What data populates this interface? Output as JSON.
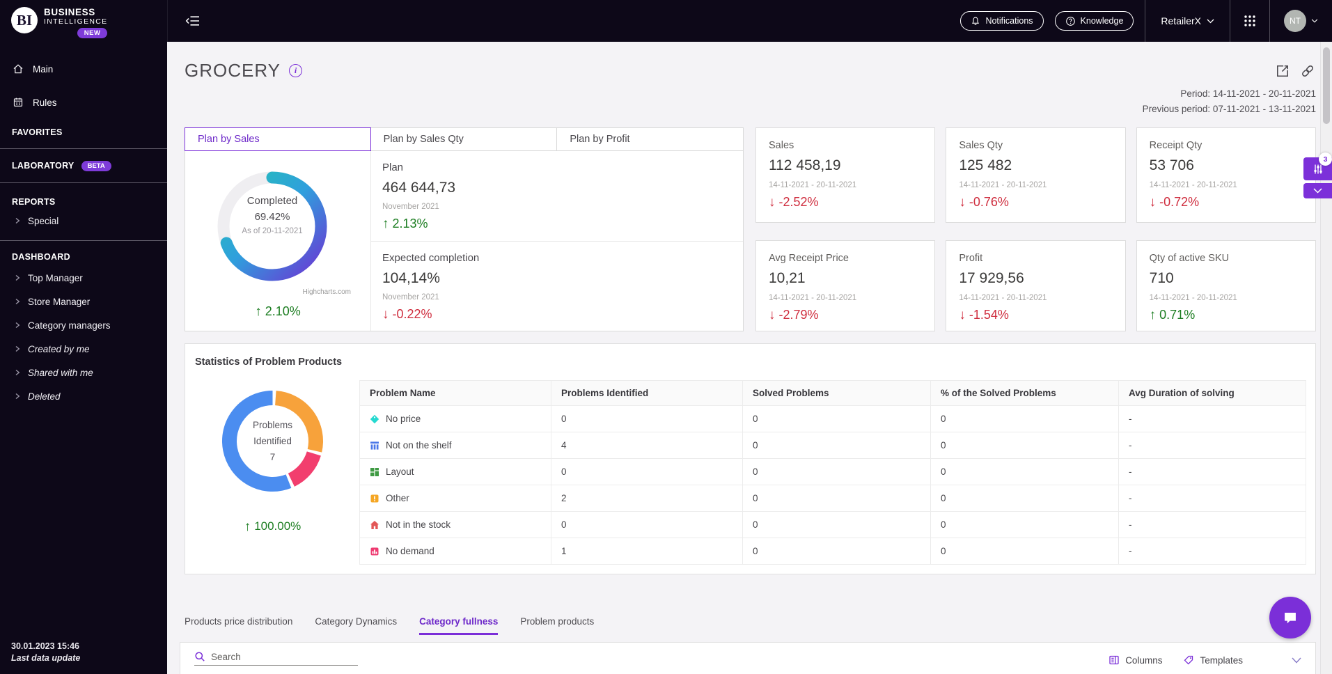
{
  "sidebar": {
    "logo": {
      "initials": "BI",
      "title_line1": "BUSINESS",
      "title_line2": "INTELLIGENCE",
      "badge": "NEW"
    },
    "nav": [
      {
        "label": "Main"
      },
      {
        "label": "Rules"
      }
    ],
    "favorites_header": "FAVORITES",
    "laboratory": {
      "label": "LABORATORY",
      "badge": "BETA"
    },
    "reports_header": "REPORTS",
    "reports_items": [
      {
        "label": "Special"
      }
    ],
    "dashboard_header": "DASHBOARD",
    "dashboard_items": [
      {
        "label": "Top Manager"
      },
      {
        "label": "Store Manager"
      },
      {
        "label": "Category managers"
      },
      {
        "label": "Created by me"
      },
      {
        "label": "Shared with me"
      },
      {
        "label": "Deleted"
      }
    ],
    "footer": {
      "timestamp": "30.01.2023 15:46",
      "label": "Last data update"
    }
  },
  "topbar": {
    "notifications_label": "Notifications",
    "knowledge_label": "Knowledge",
    "tenant": "RetailerX",
    "avatar_initials": "NT"
  },
  "page_header": {
    "title": "GROCERY",
    "period_label": "Period: 14-11-2021 - 20-11-2021",
    "previous_period_label": "Previous period: 07-11-2021 - 13-11-2021"
  },
  "plan_panel": {
    "tabs": [
      {
        "label": "Plan by Sales"
      },
      {
        "label": "Plan by Sales Qty"
      },
      {
        "label": "Plan by Profit"
      }
    ],
    "active_tab": "Plan by Sales",
    "gauge": {
      "percent": 69.42,
      "center_label": "Completed",
      "center_value": "69.42%",
      "as_of": "As of 20-11-2021",
      "credit": "Highcharts.com",
      "delta": {
        "dir": "up",
        "value": "2.10%"
      },
      "track_color": "#efeef1",
      "gradient": [
        "#23c3b4",
        "#2f9fdd",
        "#6c35d3"
      ]
    },
    "plan": {
      "label": "Plan",
      "value": "464 644,73",
      "period": "November 2021",
      "delta": {
        "dir": "up",
        "value": "2.13%"
      }
    },
    "expected": {
      "label": "Expected completion",
      "value": "104,14%",
      "period": "November 2021",
      "delta": {
        "dir": "down",
        "value": "-0.22%"
      }
    }
  },
  "kpi_cards": [
    {
      "label": "Sales",
      "value": "112 458,19",
      "period": "14-11-2021 - 20-11-2021",
      "delta": {
        "dir": "down",
        "value": "-2.52%"
      }
    },
    {
      "label": "Sales Qty",
      "value": "125 482",
      "period": "14-11-2021 - 20-11-2021",
      "delta": {
        "dir": "down",
        "value": "-0.76%"
      }
    },
    {
      "label": "Receipt Qty",
      "value": "53 706",
      "period": "14-11-2021 - 20-11-2021",
      "delta": {
        "dir": "down",
        "value": "-0.72%"
      }
    },
    {
      "label": "Avg Receipt Price",
      "value": "10,21",
      "period": "14-11-2021 - 20-11-2021",
      "delta": {
        "dir": "down",
        "value": "-2.79%"
      }
    },
    {
      "label": "Profit",
      "value": "17 929,56",
      "period": "14-11-2021 - 20-11-2021",
      "delta": {
        "dir": "down",
        "value": "-1.54%"
      }
    },
    {
      "label": "Qty of active SKU",
      "value": "710",
      "period": "14-11-2021 - 20-11-2021",
      "delta": {
        "dir": "up",
        "value": "0.71%"
      }
    }
  ],
  "problem_stats": {
    "title": "Statistics of Problem Products",
    "donut": {
      "center_line1": "Problems",
      "center_line2": "Identified",
      "center_value": "7",
      "delta": {
        "dir": "up",
        "value": "100.00%"
      },
      "segments": [
        {
          "label": "Other",
          "value": 2,
          "color": "#f7a23b"
        },
        {
          "label": "No demand",
          "value": 1,
          "color": "#f23e6e"
        },
        {
          "label": "Not on the shelf",
          "value": 4,
          "color": "#4b8df0"
        }
      ]
    },
    "table": {
      "columns": [
        "Problem Name",
        "Problems Identified",
        "Solved Problems",
        "% of the Solved Problems",
        "Avg Duration of solving"
      ],
      "rows": [
        {
          "name": "No price",
          "icon": "price-tag",
          "color": "#25d9d0",
          "identified": "0",
          "solved": "0",
          "solved_pct": "0",
          "avg_duration": "-"
        },
        {
          "name": "Not on the shelf",
          "icon": "shelf",
          "color": "#4b78e8",
          "identified": "4",
          "solved": "0",
          "solved_pct": "0",
          "avg_duration": "-"
        },
        {
          "name": "Layout",
          "icon": "layout-grid",
          "color": "#3f9a43",
          "identified": "0",
          "solved": "0",
          "solved_pct": "0",
          "avg_duration": "-"
        },
        {
          "name": "Other",
          "icon": "warning",
          "color": "#f5a623",
          "identified": "2",
          "solved": "0",
          "solved_pct": "0",
          "avg_duration": "-"
        },
        {
          "name": "Not in the stock",
          "icon": "house",
          "color": "#e25656",
          "identified": "0",
          "solved": "0",
          "solved_pct": "0",
          "avg_duration": "-"
        },
        {
          "name": "No demand",
          "icon": "bar-chart",
          "color": "#ee3a70",
          "identified": "1",
          "solved": "0",
          "solved_pct": "0",
          "avg_duration": "-"
        }
      ]
    }
  },
  "bottom_tabs": [
    {
      "label": "Products price distribution"
    },
    {
      "label": "Category Dynamics"
    },
    {
      "label": "Category fullness"
    },
    {
      "label": "Problem products"
    }
  ],
  "bottom_tabs_active": "Category fullness",
  "bottom_panel": {
    "search_placeholder": "Search",
    "columns_label": "Columns",
    "templates_label": "Templates"
  },
  "floating": {
    "filter_badge": "3"
  }
}
